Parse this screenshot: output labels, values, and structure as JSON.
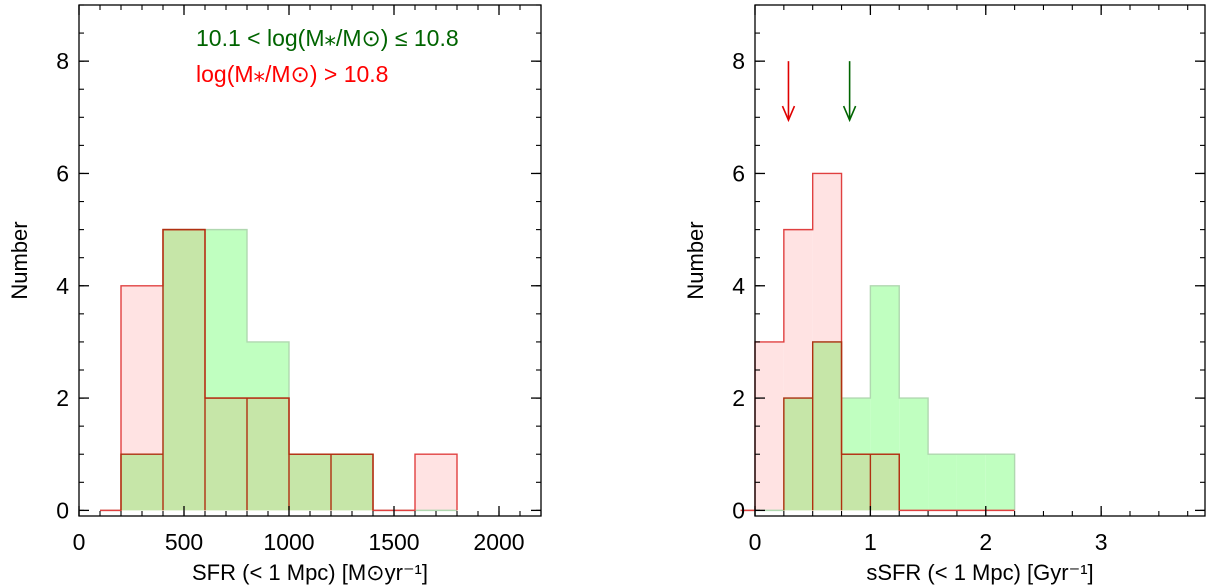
{
  "colors": {
    "mid_fill": "#c0ffc0",
    "mid_edge": "#b0d8b0",
    "mid_text": "#006400",
    "mid_arrow": "#006400",
    "high_fill": "#ffe3e3",
    "high_edge": "#e04040",
    "high_text": "#ff0000",
    "high_arrow": "#e00000",
    "overlap_fill": "#c6e6a8",
    "overlap_edge": "#b03010"
  },
  "legend": {
    "mid_label": "10.1 < log(M⁎/M⊙) ≤ 10.8",
    "high_label": "log(M⁎/M⊙) > 10.8"
  },
  "chart_data": [
    {
      "type": "bar",
      "id": "sfr",
      "xlabel": "SFR (< 1 Mpc) [M⊙yr⁻¹]",
      "ylabel": "Number",
      "xlim": [
        0,
        2200
      ],
      "ylim": [
        -0.1,
        9
      ],
      "xticks": [
        0,
        500,
        1000,
        1500,
        2000
      ],
      "yticks": [
        0,
        2,
        4,
        6,
        8
      ],
      "x_minor_step": 100,
      "y_minor_step": 0.5,
      "bin_edges": [
        200,
        400,
        600,
        800,
        1000,
        1200,
        1400,
        1600,
        1800
      ],
      "series": [
        {
          "key": "high",
          "values": [
            4,
            5,
            2,
            2,
            1,
            1,
            0,
            1
          ]
        },
        {
          "key": "mid",
          "values": [
            1,
            5,
            5,
            3,
            1,
            1,
            0,
            0
          ]
        }
      ],
      "arrows": []
    },
    {
      "type": "bar",
      "id": "ssfr",
      "xlabel": "sSFR (< 1 Mpc) [Gyr⁻¹]",
      "ylabel": "Number",
      "xlim": [
        0,
        3.9
      ],
      "ylim": [
        -0.1,
        9
      ],
      "xticks": [
        0,
        1,
        2,
        3
      ],
      "yticks": [
        0,
        2,
        4,
        6,
        8
      ],
      "x_minor_step": 0.25,
      "y_minor_step": 0.5,
      "bin_edges": [
        0,
        0.25,
        0.5,
        0.75,
        1.0,
        1.25,
        1.5,
        1.75,
        2.0,
        2.25
      ],
      "series": [
        {
          "key": "high",
          "values": [
            3,
            5,
            6,
            1,
            1,
            0,
            0,
            0,
            0
          ]
        },
        {
          "key": "mid",
          "values": [
            0,
            2,
            3,
            2,
            4,
            2,
            1,
            1,
            1
          ]
        }
      ],
      "arrows": [
        {
          "key": "high",
          "x": 0.29,
          "y_top": 8.0,
          "y_tip": 6.95
        },
        {
          "key": "mid",
          "x": 0.82,
          "y_top": 8.0,
          "y_tip": 6.95
        }
      ]
    }
  ]
}
